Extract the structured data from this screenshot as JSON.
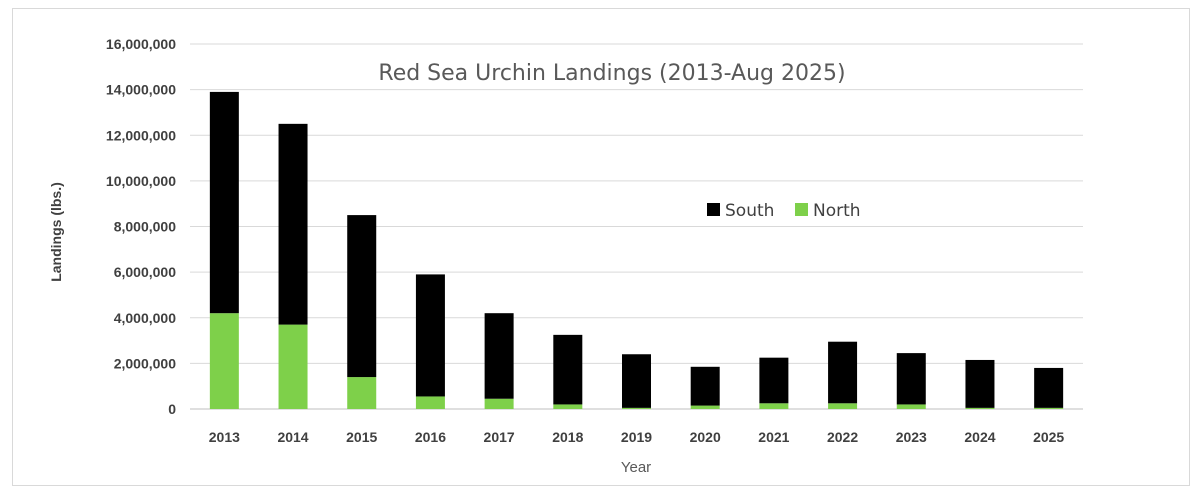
{
  "chart_data": {
    "type": "bar",
    "stacked": true,
    "title": "Red Sea Urchin Landings (2013-Aug 2025)",
    "xlabel": "Year",
    "ylabel": "Landings (lbs.)",
    "ylim": [
      0,
      16000000
    ],
    "yticks": [
      0,
      2000000,
      4000000,
      6000000,
      8000000,
      10000000,
      12000000,
      14000000,
      16000000
    ],
    "ytick_labels": [
      "0",
      "2,000,000",
      "4,000,000",
      "6,000,000",
      "8,000,000",
      "10,000,000",
      "12,000,000",
      "14,000,000",
      "16,000,000"
    ],
    "categories": [
      "2013",
      "2014",
      "2015",
      "2016",
      "2017",
      "2018",
      "2019",
      "2020",
      "2021",
      "2022",
      "2023",
      "2024",
      "2025"
    ],
    "series": [
      {
        "name": "North",
        "color": "#7ed04a",
        "values": [
          4200000,
          3700000,
          1400000,
          550000,
          450000,
          200000,
          50000,
          150000,
          250000,
          250000,
          200000,
          50000,
          50000
        ]
      },
      {
        "name": "South",
        "color": "#000000",
        "values": [
          9700000,
          8800000,
          7100000,
          5350000,
          3750000,
          3050000,
          2350000,
          1700000,
          2000000,
          2700000,
          2250000,
          2100000,
          1750000
        ]
      }
    ],
    "legend": {
      "placement": "center-right",
      "order": [
        "South",
        "North"
      ]
    },
    "grid": true
  }
}
